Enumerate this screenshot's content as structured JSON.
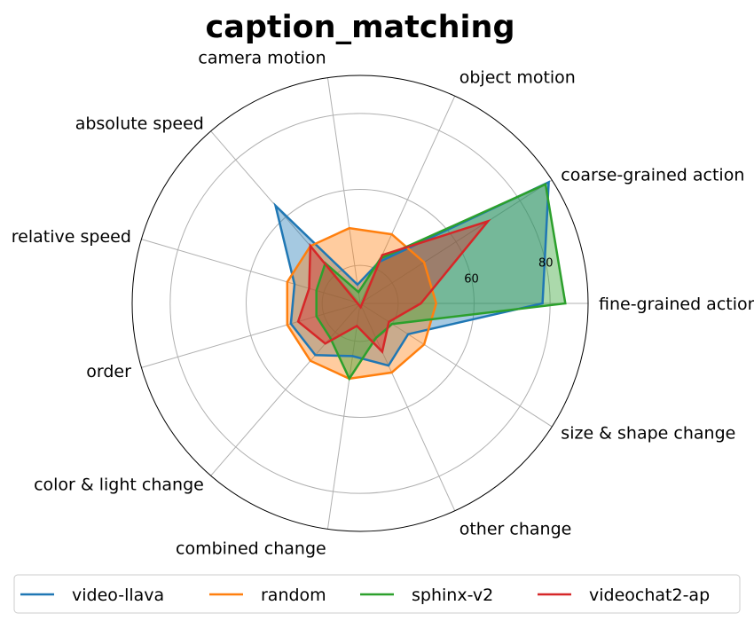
{
  "chart_data": {
    "type": "radar",
    "title": "caption_matching",
    "axes": [
      "fine-grained action",
      "coarse-grained action",
      "object motion",
      "camera motion",
      "absolute speed",
      "relative speed",
      "order",
      "color & light change",
      "combined change",
      "other change",
      "size & shape change"
    ],
    "rlim": [
      30,
      90
    ],
    "rticks": [
      60,
      80
    ],
    "grid": true,
    "legend_position": "bottom",
    "series": [
      {
        "name": "video-llava",
        "color": "#1f77b4",
        "values": [
          78,
          89,
          42,
          35,
          64,
          48,
          49,
          48,
          44,
          48,
          45
        ]
      },
      {
        "name": "random",
        "color": "#ff7f0e",
        "values": [
          50,
          50,
          50,
          50,
          50,
          50,
          50,
          50,
          50,
          50,
          50
        ]
      },
      {
        "name": "sphinx-v2",
        "color": "#2ca02c",
        "values": [
          84,
          88,
          43,
          33,
          44,
          42,
          42,
          42,
          50,
          40,
          40
        ]
      },
      {
        "name": "videochat2-ap",
        "color": "#d62728",
        "values": [
          46,
          70,
          44,
          29,
          50,
          44,
          47,
          44,
          36,
          44,
          39
        ]
      }
    ]
  }
}
